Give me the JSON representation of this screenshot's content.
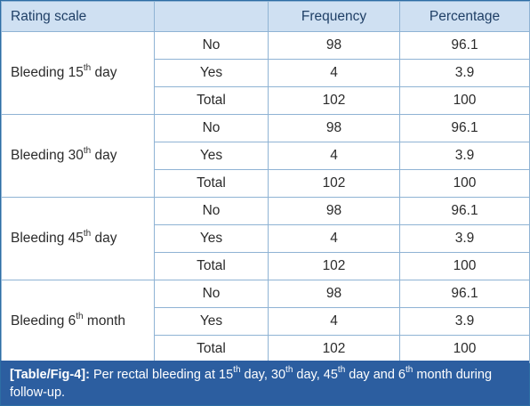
{
  "table": {
    "headers": [
      "Rating scale",
      "",
      "Frequency",
      "Percentage"
    ],
    "groups": [
      {
        "label_pre": "Bleeding 15",
        "label_sup": "th",
        "label_post": " day",
        "rows": [
          {
            "response": "No",
            "frequency": "98",
            "percentage": "96.1"
          },
          {
            "response": "Yes",
            "frequency": "4",
            "percentage": "3.9"
          },
          {
            "response": "Total",
            "frequency": "102",
            "percentage": "100"
          }
        ]
      },
      {
        "label_pre": "Bleeding 30",
        "label_sup": "th",
        "label_post": " day",
        "rows": [
          {
            "response": "No",
            "frequency": "98",
            "percentage": "96.1"
          },
          {
            "response": "Yes",
            "frequency": "4",
            "percentage": "3.9"
          },
          {
            "response": "Total",
            "frequency": "102",
            "percentage": "100"
          }
        ]
      },
      {
        "label_pre": "Bleeding 45",
        "label_sup": "th",
        "label_post": " day",
        "rows": [
          {
            "response": "No",
            "frequency": "98",
            "percentage": "96.1"
          },
          {
            "response": "Yes",
            "frequency": "4",
            "percentage": "3.9"
          },
          {
            "response": "Total",
            "frequency": "102",
            "percentage": "100"
          }
        ]
      },
      {
        "label_pre": "Bleeding 6",
        "label_sup": "th",
        "label_post": " month",
        "rows": [
          {
            "response": "No",
            "frequency": "98",
            "percentage": "96.1"
          },
          {
            "response": "Yes",
            "frequency": "4",
            "percentage": "3.9"
          },
          {
            "response": "Total",
            "frequency": "102",
            "percentage": "100"
          }
        ]
      }
    ]
  },
  "caption": {
    "tag": "[Table/Fig-4]:",
    "parts": [
      {
        "text": " Per rectal bleeding at 15",
        "sup": false
      },
      {
        "text": "th",
        "sup": true
      },
      {
        "text": " day, 30",
        "sup": false
      },
      {
        "text": "th",
        "sup": true
      },
      {
        "text": " day, 45",
        "sup": false
      },
      {
        "text": "th",
        "sup": true
      },
      {
        "text": " day and 6",
        "sup": false
      },
      {
        "text": "th",
        "sup": true
      },
      {
        "text": " month during follow-up.",
        "sup": false
      }
    ]
  },
  "colors": {
    "header_bg": "#cfe0f2",
    "caption_bg": "#2c5ea0",
    "border": "#8fb3d4"
  }
}
